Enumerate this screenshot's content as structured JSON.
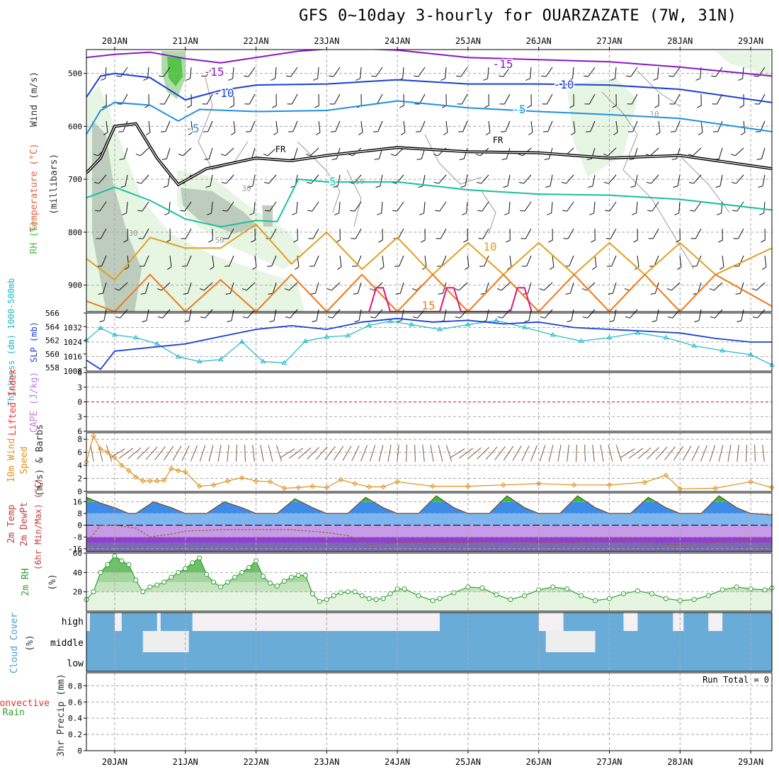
{
  "title": "GFS 0~10day 3-hourly for OUARZAZATE (7W, 31N)",
  "colors": {
    "purple": "#8a16c8",
    "blue": "#1b3fd6",
    "skyblue": "#1e90e0",
    "freezing": "#000000",
    "teal": "#18c09a",
    "orange10": "#e0a020",
    "orange15": "#ee7a18",
    "magenta": "#dd1477",
    "rh_light": "#e4f4e0",
    "rh_mid": "#a6d8a0",
    "rh_dark": "#4fc040",
    "rh_gray": "#b8c8b8",
    "thick": "#18b8c8",
    "slp": "#1b3fd6",
    "lifted": "#ff3030",
    "cape": "#c080e0",
    "wind10": "#e0901a",
    "barb": "#7a5a3a",
    "temp_green": "#30c030",
    "temp_blue": "#3c8ce8",
    "dew_purple": "#9040d0",
    "rh2m": "#30a030",
    "cloud": "#6aacd8",
    "cloud_clear": "#eeeeee"
  },
  "chart_data": [
    {
      "type": "line",
      "panel": "upper_air",
      "ylabel_parts": [
        "RH (%)",
        "Temperature (°C)",
        "Wind (m/s)"
      ],
      "ylabel2": "(millibars)",
      "y_ticks": [
        500,
        600,
        700,
        800,
        900
      ],
      "ylim": [
        950,
        455
      ],
      "x_ticks": [
        "20JAN",
        "21JAN",
        "22JAN",
        "23JAN",
        "24JAN",
        "25JAN",
        "26JAN",
        "27JAN",
        "28JAN",
        "29JAN"
      ],
      "xlim_day": [
        -0.4,
        9.3
      ],
      "isotherm_labels": [
        "-15",
        "-15",
        "-10",
        "-10",
        "-5",
        "-5",
        "FR",
        "FR",
        "5",
        "10",
        "15"
      ],
      "rh_labels": [
        "30",
        "30",
        "50",
        "10",
        "10"
      ],
      "series": [
        {
          "name": "-15",
          "x": [
            -0.4,
            0.0,
            0.5,
            1.0,
            1.5,
            2.0,
            2.6,
            3.2,
            4.0,
            5.0,
            6.0,
            7.0,
            8.0,
            9.3
          ],
          "y": [
            470,
            464,
            460,
            472,
            480,
            470,
            458,
            452,
            456,
            470,
            474,
            478,
            488,
            505
          ]
        },
        {
          "name": "-10",
          "x": [
            -0.4,
            -0.2,
            0.0,
            0.5,
            1.0,
            1.5,
            2.0,
            3.0,
            4.0,
            5.0,
            6.0,
            7.0,
            8.0,
            9.3
          ],
          "y": [
            545,
            505,
            500,
            508,
            550,
            532,
            522,
            520,
            512,
            520,
            520,
            522,
            530,
            555
          ]
        },
        {
          "name": "-5",
          "x": [
            -0.4,
            -0.2,
            0.0,
            0.5,
            0.9,
            1.2,
            2.0,
            3.0,
            4.0,
            5.0,
            6.0,
            7.0,
            8.0,
            9.3
          ],
          "y": [
            615,
            570,
            555,
            560,
            590,
            568,
            572,
            570,
            552,
            565,
            572,
            578,
            585,
            610
          ]
        },
        {
          "name": "FR",
          "x": [
            -0.4,
            -0.2,
            0.0,
            0.3,
            0.6,
            0.9,
            1.3,
            2.0,
            2.5,
            3.0,
            4.0,
            5.0,
            6.0,
            7.0,
            8.0,
            9.3
          ],
          "y": [
            688,
            660,
            600,
            595,
            660,
            710,
            680,
            660,
            665,
            655,
            640,
            648,
            650,
            660,
            655,
            680
          ]
        },
        {
          "name": "5",
          "x": [
            -0.4,
            0.0,
            0.5,
            1.0,
            1.5,
            2.0,
            2.3,
            2.6,
            3.0,
            4.0,
            5.0,
            6.0,
            7.0,
            8.0,
            9.3
          ],
          "y": [
            735,
            715,
            740,
            775,
            790,
            778,
            780,
            700,
            705,
            705,
            720,
            728,
            730,
            738,
            758
          ]
        },
        {
          "name": "10",
          "x": [
            -0.4,
            0.0,
            0.5,
            1.0,
            1.5,
            2.0,
            2.5,
            3.0,
            3.5,
            4.0,
            4.5,
            5.0,
            5.5,
            6.0,
            6.5,
            7.0,
            7.5,
            8.0,
            8.5,
            9.3
          ],
          "y": [
            850,
            890,
            810,
            830,
            830,
            785,
            860,
            800,
            870,
            810,
            880,
            820,
            880,
            820,
            880,
            820,
            880,
            820,
            880,
            830
          ]
        },
        {
          "name": "15",
          "x": [
            -0.4,
            0.0,
            0.5,
            1.0,
            1.5,
            2.0,
            2.5,
            3.0,
            3.5,
            4.0,
            4.5,
            5.0,
            5.5,
            6.0,
            6.5,
            7.0,
            7.5,
            8.0,
            8.5,
            9.3
          ],
          "y": [
            930,
            950,
            880,
            950,
            890,
            950,
            880,
            950,
            880,
            950,
            880,
            950,
            880,
            950,
            880,
            950,
            880,
            950,
            880,
            940
          ]
        },
        {
          "name": "20",
          "x": [
            3.6,
            3.7,
            3.8,
            3.9,
            4.6,
            4.7,
            4.8,
            4.9,
            5.6,
            5.7,
            5.8,
            5.9
          ],
          "y": [
            950,
            905,
            905,
            950,
            950,
            905,
            905,
            950,
            950,
            905,
            905,
            950
          ]
        }
      ]
    },
    {
      "type": "line",
      "panel": "thickness_slp",
      "ylabel_left": "Thickness (dm) 1000-500mb",
      "ylabel_right": "SLP (mb)",
      "thick_ticks": [
        558,
        560,
        562,
        564,
        566
      ],
      "thick_lim": [
        557.5,
        566
      ],
      "slp_ticks": [
        1008,
        1016,
        1024,
        1032
      ],
      "slp_lim": [
        1008,
        1040
      ],
      "series": [
        {
          "name": "thickness",
          "x": [
            -0.4,
            -0.2,
            0.0,
            0.3,
            0.6,
            0.9,
            1.2,
            1.5,
            1.8,
            2.1,
            2.4,
            2.7,
            3.0,
            3.3,
            3.6,
            3.9,
            4.2,
            4.6,
            5.0,
            5.4,
            5.8,
            6.2,
            6.6,
            7.0,
            7.4,
            7.8,
            8.2,
            8.6,
            9.0,
            9.3
          ],
          "y": [
            562.0,
            563.8,
            562.8,
            562.4,
            561.5,
            559.6,
            558.9,
            559.2,
            561.8,
            558.9,
            558.7,
            561.9,
            562.5,
            562.7,
            564.2,
            564.8,
            564.3,
            563.6,
            564.3,
            564.9,
            563.9,
            562.8,
            561.9,
            562.4,
            563.1,
            562.4,
            561.2,
            560.5,
            559.9,
            558.4
          ]
        },
        {
          "name": "SLP",
          "x": [
            -0.4,
            -0.2,
            0.0,
            0.5,
            1.0,
            1.5,
            2.0,
            2.5,
            3.0,
            3.5,
            4.0,
            4.5,
            5.0,
            5.5,
            6.0,
            6.5,
            7.0,
            7.5,
            8.0,
            8.5,
            9.0,
            9.3
          ],
          "y": [
            1014,
            1009,
            1019,
            1021,
            1023,
            1027,
            1031,
            1033,
            1031,
            1035,
            1037,
            1035,
            1036,
            1034,
            1035,
            1032,
            1031,
            1030,
            1029,
            1026,
            1024,
            1024
          ]
        }
      ]
    },
    {
      "type": "line",
      "panel": "lifted_cape",
      "ylabel_left": "Lifted Index",
      "ylabel_right": "CAPE (J/kg)",
      "y_ticks": [
        -6,
        -3,
        0,
        3,
        6
      ],
      "tick_labels": [
        "6",
        "3",
        "0",
        "3",
        "6"
      ],
      "ylim": [
        -6,
        6
      ],
      "lifted_index_value": 0
    },
    {
      "type": "line",
      "panel": "wind10m",
      "ylabel": "10m Wind Speed (m/s) & Barbs",
      "y_ticks": [
        0,
        2,
        4,
        6,
        8
      ],
      "ylim": [
        0,
        9
      ],
      "series": [
        {
          "name": "10m wind speed",
          "x": [
            -0.4,
            -0.3,
            -0.2,
            -0.1,
            0.0,
            0.1,
            0.2,
            0.3,
            0.4,
            0.5,
            0.6,
            0.7,
            0.8,
            0.9,
            1.0,
            1.2,
            1.4,
            1.6,
            1.8,
            2.0,
            2.2,
            2.4,
            2.6,
            2.8,
            3.0,
            3.2,
            3.4,
            3.6,
            3.8,
            4.0,
            4.5,
            5.0,
            5.5,
            6.0,
            6.5,
            7.0,
            7.5,
            7.8,
            8.0,
            8.5,
            9.0,
            9.3
          ],
          "y": [
            4.5,
            8.5,
            6.5,
            6.0,
            5.2,
            4.0,
            3.2,
            2.2,
            1.6,
            1.6,
            1.6,
            1.7,
            3.5,
            3.2,
            3.0,
            0.8,
            1.0,
            1.6,
            2.1,
            1.6,
            1.5,
            0.5,
            0.6,
            0.8,
            0.6,
            1.8,
            1.2,
            0.7,
            0.7,
            1.5,
            0.8,
            0.8,
            1.0,
            1.2,
            1.0,
            1.0,
            1.4,
            2.5,
            0.4,
            0.5,
            1.5,
            0.6
          ]
        }
      ]
    },
    {
      "type": "area",
      "panel": "temp2m",
      "ylabel": "2m Temp 2m DewPt (6hr Min/Max) (°C)",
      "y_ticks": [
        -16,
        -8,
        0,
        8,
        16
      ],
      "ylim": [
        -18,
        22
      ],
      "series": [
        {
          "name": "2m Temp",
          "x": [
            -0.4,
            -0.2,
            0.0,
            0.2,
            0.3,
            0.55,
            0.8,
            1.0,
            1.3,
            1.55,
            1.8,
            2.0,
            2.3,
            2.55,
            2.8,
            3.0,
            3.3,
            3.55,
            3.8,
            4.0,
            4.3,
            4.55,
            4.8,
            5.0,
            5.3,
            5.55,
            5.8,
            6.0,
            6.3,
            6.55,
            6.8,
            7.0,
            7.3,
            7.55,
            7.8,
            8.0,
            8.3,
            8.55,
            8.8,
            9.0,
            9.3
          ],
          "y": [
            19,
            15,
            12,
            8,
            8,
            16,
            12,
            8,
            8,
            16,
            12,
            8,
            8,
            18,
            12,
            8,
            8,
            19,
            12,
            8,
            8,
            20,
            12,
            8,
            8,
            20,
            12,
            8,
            8,
            20,
            12,
            8,
            8,
            19,
            12,
            8,
            8,
            20,
            12,
            8,
            7
          ]
        },
        {
          "name": "2m DewPt",
          "x": [
            -0.4,
            -0.2,
            0.0,
            0.3,
            0.5,
            0.8,
            1.0,
            1.5,
            2.0,
            2.5,
            3.0,
            3.3,
            3.6,
            4.0,
            4.5,
            5.0,
            5.5,
            6.0,
            6.5,
            7.0,
            7.5,
            7.8,
            8.0,
            8.5,
            9.0,
            9.3
          ],
          "y": [
            -12,
            0,
            0,
            -2,
            -8,
            -6,
            -4,
            -3,
            -3,
            -3,
            -5,
            -7,
            -13,
            -12,
            -12,
            -12,
            -11,
            -12,
            -12,
            -10,
            -11,
            -13,
            -13,
            -12,
            -10,
            -10
          ]
        }
      ]
    },
    {
      "type": "area",
      "panel": "rh2m",
      "ylabel": "2m RH (%)",
      "y_ticks": [
        20,
        40,
        60
      ],
      "ylim": [
        0,
        60
      ],
      "series": [
        {
          "name": "2m RH",
          "x": [
            -0.4,
            -0.3,
            -0.2,
            -0.1,
            0.0,
            0.1,
            0.2,
            0.3,
            0.4,
            0.5,
            0.6,
            0.7,
            0.8,
            0.9,
            1.0,
            1.1,
            1.2,
            1.3,
            1.4,
            1.5,
            1.6,
            1.7,
            1.8,
            1.9,
            2.0,
            2.1,
            2.2,
            2.3,
            2.4,
            2.5,
            2.6,
            2.7,
            2.8,
            2.9,
            3.0,
            3.1,
            3.2,
            3.3,
            3.4,
            3.5,
            3.6,
            3.7,
            3.8,
            3.9,
            4.0,
            4.1,
            4.3,
            4.5,
            4.6,
            4.8,
            5.0,
            5.2,
            5.4,
            5.6,
            5.8,
            6.0,
            6.2,
            6.4,
            6.6,
            6.8,
            7.0,
            7.2,
            7.4,
            7.6,
            7.8,
            8.0,
            8.2,
            8.4,
            8.6,
            8.8,
            9.0,
            9.2,
            9.3
          ],
          "y": [
            12,
            20,
            40,
            48,
            57,
            52,
            48,
            32,
            20,
            25,
            27,
            30,
            35,
            40,
            44,
            50,
            55,
            38,
            30,
            25,
            30,
            35,
            40,
            45,
            52,
            36,
            29,
            26,
            31,
            35,
            37,
            37,
            18,
            10,
            12,
            16,
            19,
            20,
            20,
            16,
            13,
            12,
            13,
            18,
            23,
            23,
            16,
            11,
            13,
            19,
            25,
            24,
            17,
            12,
            16,
            22,
            25,
            23,
            16,
            11,
            13,
            18,
            21,
            18,
            13,
            11,
            12,
            16,
            22,
            25,
            23,
            22,
            24
          ]
        }
      ]
    },
    {
      "type": "heatmap",
      "panel": "cloud",
      "ylabel": "Cloud Cover (%)",
      "levels": [
        "high",
        "middle",
        "low"
      ],
      "clear_high": [
        [
          -0.4,
          -0.35
        ],
        [
          0.0,
          0.1
        ],
        [
          0.6,
          0.65
        ],
        [
          1.1,
          4.6
        ],
        [
          6.0,
          6.35
        ],
        [
          7.2,
          7.4
        ],
        [
          7.9,
          8.05
        ],
        [
          8.4,
          8.6
        ]
      ],
      "clear_middle": [
        [
          0.4,
          1.05
        ],
        [
          6.1,
          6.8
        ]
      ]
    },
    {
      "type": "bar",
      "panel": "precip",
      "ylabel_left": "Total / Rain Convective",
      "ylabel_right": "3hr Precip (mm)",
      "y_ticks": [
        0,
        0.2,
        0.4,
        0.6,
        0.8
      ],
      "ylim": [
        0,
        0.96
      ],
      "run_total": "Run Total = 0",
      "values": []
    }
  ]
}
